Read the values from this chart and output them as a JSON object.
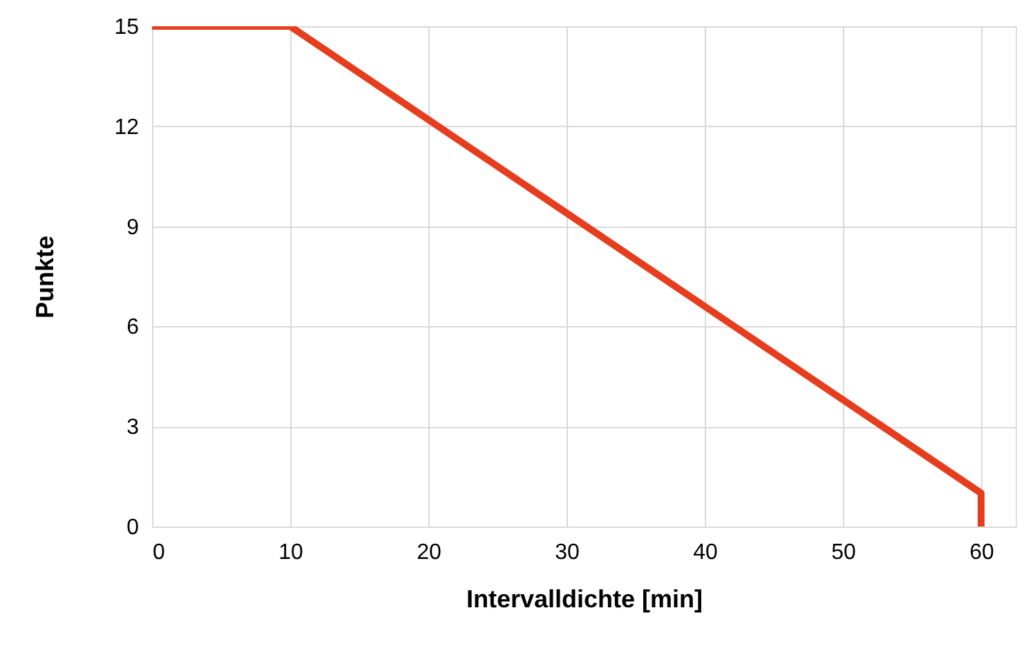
{
  "chart_data": {
    "type": "line",
    "xlabel": "Intervalldichte [min]",
    "ylabel": "Punkte",
    "x": [
      0,
      10,
      60,
      60
    ],
    "series": [
      {
        "color": "#e53d1d",
        "values": [
          15,
          15,
          1,
          0
        ]
      }
    ],
    "xlim": [
      0,
      62.5
    ],
    "xticks": [
      0,
      10,
      20,
      30,
      40,
      50,
      60
    ],
    "ylim": [
      0,
      15
    ],
    "yticks": [
      0,
      3,
      6,
      9,
      12,
      15
    ],
    "grid": true,
    "marker": "none",
    "line_style": "solid"
  }
}
